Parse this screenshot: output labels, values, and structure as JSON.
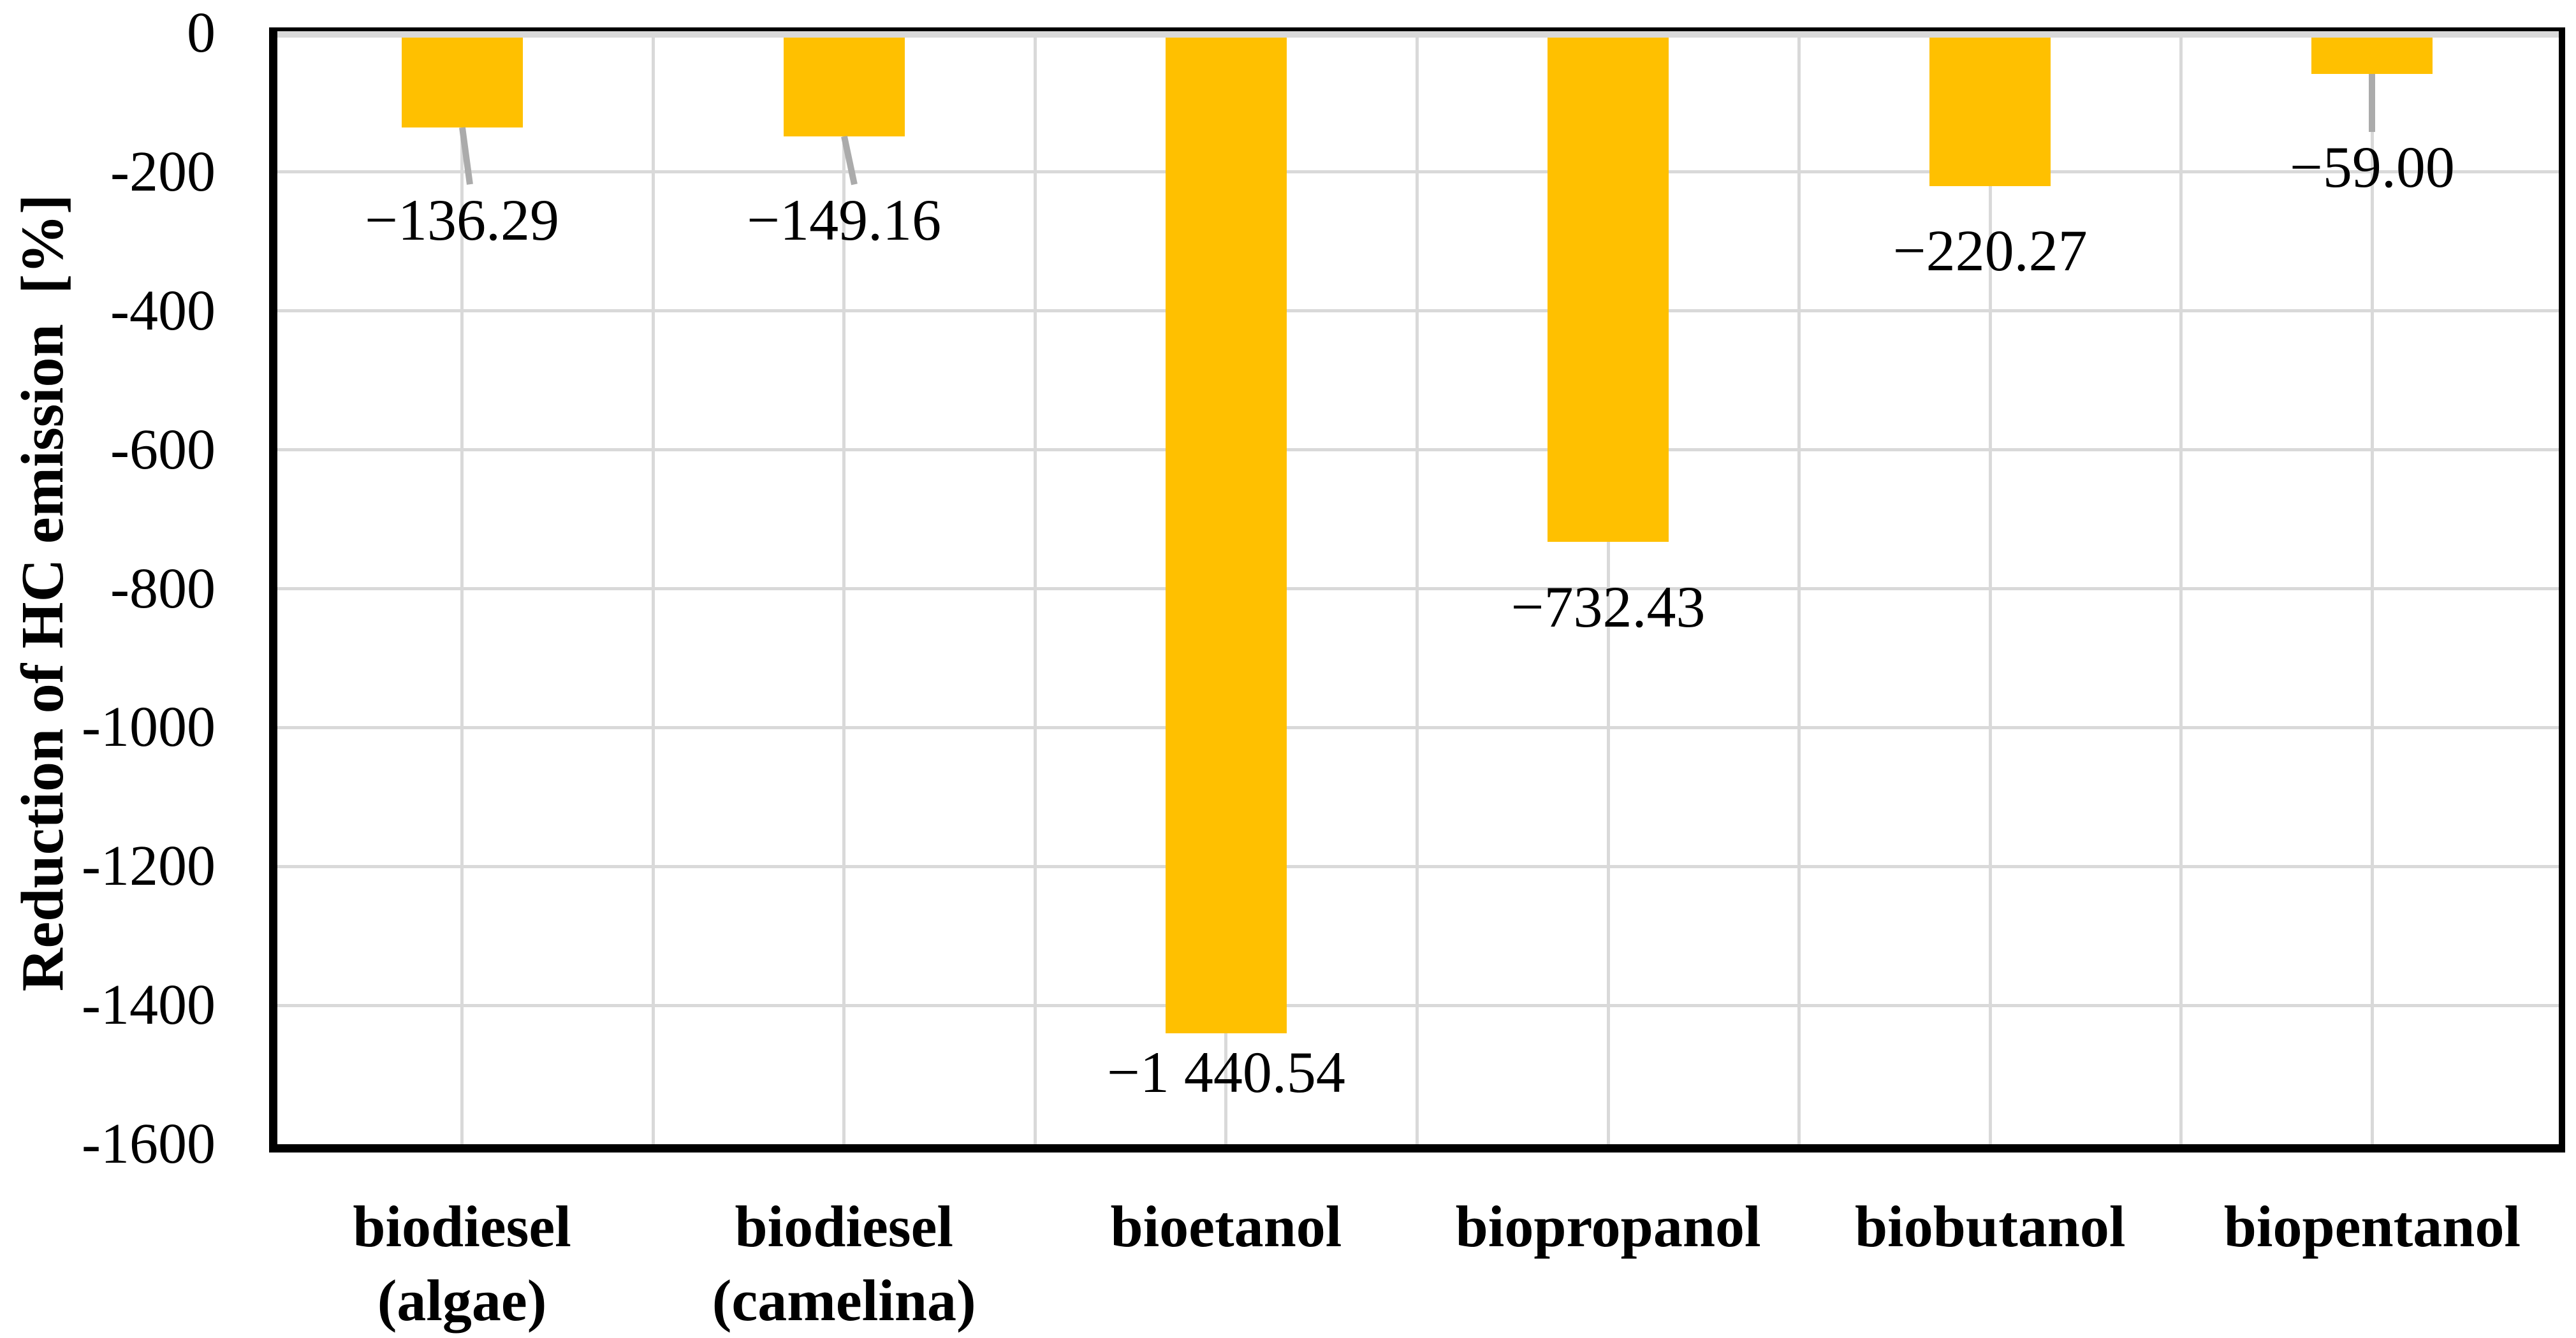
{
  "figure": {
    "background": "#FFFFFF"
  },
  "chart_data": {
    "type": "bar",
    "title": "",
    "xlabel": "",
    "ylabel": "Reduction of HC emission  [%]",
    "categories": [
      [
        "biodiesel",
        "(algae)"
      ],
      [
        "biodiesel",
        "(camelina)"
      ],
      [
        "bioetanol"
      ],
      [
        "biopropanol"
      ],
      [
        "biobutanol"
      ],
      [
        "biopentanol"
      ]
    ],
    "categories_text": [
      "biodiesel (algae)",
      "biodiesel (camelina)",
      "bioetanol",
      "biopropanol",
      "biobutanol",
      "biopentanol"
    ],
    "values": [
      -136.29,
      -149.16,
      -1440.54,
      -732.43,
      -220.27,
      -59.0
    ],
    "data_labels": [
      "−136.29",
      "−149.16",
      "−1 440.54",
      "−732.43",
      "−220.27",
      "−59.00"
    ],
    "ylim": [
      -1600,
      0
    ],
    "y_ticks": [
      0,
      -200,
      -400,
      -600,
      -800,
      -1000,
      -1200,
      -1400,
      -1600
    ],
    "y_tick_labels": [
      "0",
      "-200",
      "-400",
      "-600",
      "-800",
      "-1000",
      "-1200",
      "-1400",
      "-1600"
    ],
    "grid": {
      "horizontal": "major (every 200)",
      "vertical": "major at category boundaries + minor at category centers",
      "color": "#D9D9D9"
    },
    "legend": "none",
    "colors": {
      "bar": "#FFC000",
      "gridline": "#D9D9D9",
      "leader_line": "#ABABAB",
      "zero_axis_line": "#D9D9D9",
      "axis_border": "#000000",
      "text": "#000000"
    }
  }
}
